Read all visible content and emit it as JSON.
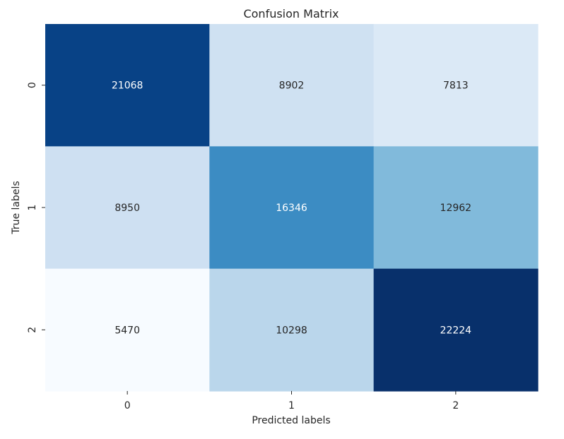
{
  "chart_data": {
    "type": "heatmap",
    "title": "Confusion Matrix",
    "xlabel": "Predicted labels",
    "ylabel": "True labels",
    "x_categories": [
      "0",
      "1",
      "2"
    ],
    "y_categories": [
      "0",
      "1",
      "2"
    ],
    "values": [
      [
        21068,
        8902,
        7813
      ],
      [
        8950,
        16346,
        12962
      ],
      [
        5470,
        10298,
        22224
      ]
    ],
    "colormap": "Blues",
    "colorbar": false,
    "colors": {
      "low": "#f7fbff",
      "high": "#08306b",
      "text_on_dark": "#ffffff",
      "text_on_light": "#262626"
    }
  }
}
